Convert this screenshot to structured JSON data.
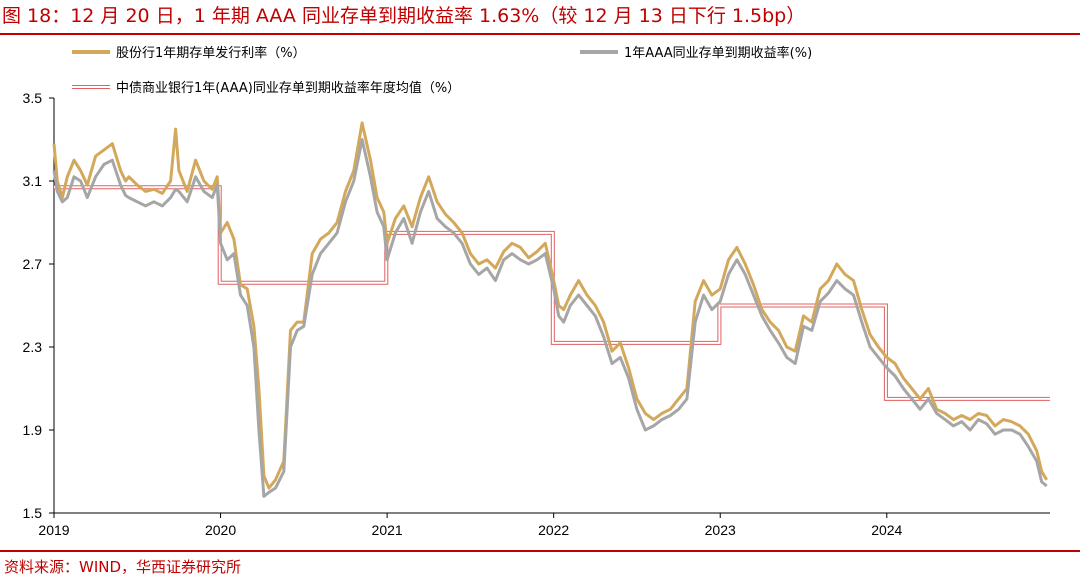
{
  "header": {
    "title": "图 18：12 月 20 日，1 年期 AAA 同业存单到期收益率 1.63%（较 12 月 13 日下行 1.5bp）"
  },
  "footer": {
    "source": "资料来源：WIND，华西证券研究所"
  },
  "chart_data": {
    "type": "line",
    "title": "",
    "xlabel": "",
    "ylabel": "",
    "xlim": [
      2019.0,
      2024.98
    ],
    "ylim": [
      1.5,
      3.5
    ],
    "grid": false,
    "legend_position": "top",
    "x_tick_labels": [
      "2019",
      "2020",
      "2021",
      "2022",
      "2023",
      "2024"
    ],
    "y_tick_labels": [
      "1.5",
      "1.9",
      "2.3",
      "2.7",
      "3.1",
      "3.5"
    ],
    "colors": {
      "series1": "#d4a85a",
      "series2": "#a6a6a6",
      "series3": "#e06060",
      "accent": "#c00000"
    },
    "series": [
      {
        "name": "股份行1年期存单发行利率（%）",
        "x": [
          2019.0,
          2019.02,
          2019.05,
          2019.08,
          2019.12,
          2019.16,
          2019.2,
          2019.25,
          2019.3,
          2019.35,
          2019.4,
          2019.43,
          2019.45,
          2019.5,
          2019.55,
          2019.6,
          2019.65,
          2019.7,
          2019.73,
          2019.75,
          2019.8,
          2019.85,
          2019.9,
          2019.95,
          2019.98,
          2020.0,
          2020.04,
          2020.08,
          2020.12,
          2020.16,
          2020.2,
          2020.23,
          2020.26,
          2020.29,
          2020.33,
          2020.38,
          2020.42,
          2020.46,
          2020.5,
          2020.55,
          2020.6,
          2020.65,
          2020.7,
          2020.75,
          2020.8,
          2020.85,
          2020.9,
          2020.94,
          2020.98,
          2021.0,
          2021.05,
          2021.1,
          2021.15,
          2021.2,
          2021.25,
          2021.3,
          2021.35,
          2021.4,
          2021.45,
          2021.5,
          2021.55,
          2021.6,
          2021.65,
          2021.7,
          2021.75,
          2021.8,
          2021.85,
          2021.9,
          2021.95,
          2022.0,
          2022.03,
          2022.06,
          2022.1,
          2022.15,
          2022.2,
          2022.25,
          2022.3,
          2022.35,
          2022.4,
          2022.45,
          2022.5,
          2022.55,
          2022.6,
          2022.65,
          2022.7,
          2022.75,
          2022.8,
          2022.85,
          2022.9,
          2022.95,
          2023.0,
          2023.05,
          2023.1,
          2023.15,
          2023.2,
          2023.25,
          2023.3,
          2023.35,
          2023.4,
          2023.45,
          2023.5,
          2023.55,
          2023.6,
          2023.65,
          2023.7,
          2023.75,
          2023.8,
          2023.85,
          2023.9,
          2023.95,
          2024.0,
          2024.05,
          2024.1,
          2024.15,
          2024.2,
          2024.25,
          2024.3,
          2024.35,
          2024.4,
          2024.45,
          2024.5,
          2024.55,
          2024.6,
          2024.65,
          2024.7,
          2024.75,
          2024.8,
          2024.85,
          2024.9,
          2024.93,
          2024.96
        ],
        "values": [
          3.28,
          3.1,
          3.02,
          3.12,
          3.2,
          3.15,
          3.08,
          3.22,
          3.25,
          3.28,
          3.15,
          3.1,
          3.12,
          3.08,
          3.05,
          3.06,
          3.04,
          3.1,
          3.35,
          3.15,
          3.05,
          3.2,
          3.1,
          3.06,
          3.12,
          2.85,
          2.9,
          2.82,
          2.6,
          2.58,
          2.4,
          2.1,
          1.68,
          1.62,
          1.66,
          1.75,
          2.38,
          2.42,
          2.42,
          2.75,
          2.82,
          2.85,
          2.9,
          3.05,
          3.15,
          3.38,
          3.2,
          3.02,
          2.95,
          2.8,
          2.92,
          2.98,
          2.88,
          3.02,
          3.12,
          3.0,
          2.94,
          2.9,
          2.85,
          2.75,
          2.7,
          2.72,
          2.68,
          2.76,
          2.8,
          2.78,
          2.73,
          2.76,
          2.8,
          2.62,
          2.5,
          2.48,
          2.55,
          2.62,
          2.55,
          2.5,
          2.42,
          2.28,
          2.32,
          2.2,
          2.05,
          1.98,
          1.95,
          1.98,
          2.0,
          2.05,
          2.1,
          2.52,
          2.62,
          2.55,
          2.58,
          2.72,
          2.78,
          2.7,
          2.6,
          2.48,
          2.42,
          2.38,
          2.3,
          2.28,
          2.45,
          2.42,
          2.58,
          2.62,
          2.7,
          2.65,
          2.62,
          2.48,
          2.36,
          2.3,
          2.25,
          2.22,
          2.15,
          2.1,
          2.05,
          2.1,
          2.0,
          1.98,
          1.95,
          1.97,
          1.95,
          1.98,
          1.97,
          1.92,
          1.95,
          1.94,
          1.92,
          1.88,
          1.8,
          1.7,
          1.66
        ]
      },
      {
        "name": "1年AAA同业存单到期收益率(%)",
        "x": [
          2019.0,
          2019.02,
          2019.05,
          2019.08,
          2019.12,
          2019.16,
          2019.2,
          2019.25,
          2019.3,
          2019.35,
          2019.4,
          2019.43,
          2019.45,
          2019.5,
          2019.55,
          2019.6,
          2019.65,
          2019.7,
          2019.73,
          2019.75,
          2019.8,
          2019.85,
          2019.9,
          2019.95,
          2019.98,
          2020.0,
          2020.04,
          2020.08,
          2020.12,
          2020.16,
          2020.2,
          2020.23,
          2020.26,
          2020.29,
          2020.33,
          2020.38,
          2020.42,
          2020.46,
          2020.5,
          2020.55,
          2020.6,
          2020.65,
          2020.7,
          2020.75,
          2020.8,
          2020.85,
          2020.9,
          2020.94,
          2020.98,
          2021.0,
          2021.05,
          2021.1,
          2021.15,
          2021.2,
          2021.25,
          2021.3,
          2021.35,
          2021.4,
          2021.45,
          2021.5,
          2021.55,
          2021.6,
          2021.65,
          2021.7,
          2021.75,
          2021.8,
          2021.85,
          2021.9,
          2021.95,
          2022.0,
          2022.03,
          2022.06,
          2022.1,
          2022.15,
          2022.2,
          2022.25,
          2022.3,
          2022.35,
          2022.4,
          2022.45,
          2022.5,
          2022.55,
          2022.6,
          2022.65,
          2022.7,
          2022.75,
          2022.8,
          2022.85,
          2022.9,
          2022.95,
          2023.0,
          2023.05,
          2023.1,
          2023.15,
          2023.2,
          2023.25,
          2023.3,
          2023.35,
          2023.4,
          2023.45,
          2023.5,
          2023.55,
          2023.6,
          2023.65,
          2023.7,
          2023.75,
          2023.8,
          2023.85,
          2023.9,
          2023.95,
          2024.0,
          2024.05,
          2024.1,
          2024.15,
          2024.2,
          2024.25,
          2024.3,
          2024.35,
          2024.4,
          2024.45,
          2024.5,
          2024.55,
          2024.6,
          2024.65,
          2024.7,
          2024.75,
          2024.8,
          2024.85,
          2024.9,
          2024.93,
          2024.96
        ],
        "values": [
          3.15,
          3.05,
          3.0,
          3.02,
          3.12,
          3.1,
          3.02,
          3.12,
          3.18,
          3.2,
          3.08,
          3.03,
          3.02,
          3.0,
          2.98,
          3.0,
          2.98,
          3.02,
          3.06,
          3.05,
          3.0,
          3.12,
          3.05,
          3.02,
          3.08,
          2.8,
          2.72,
          2.75,
          2.55,
          2.5,
          2.3,
          1.9,
          1.58,
          1.6,
          1.62,
          1.7,
          2.3,
          2.38,
          2.4,
          2.65,
          2.75,
          2.8,
          2.85,
          3.0,
          3.1,
          3.3,
          3.12,
          2.95,
          2.88,
          2.72,
          2.85,
          2.92,
          2.8,
          2.95,
          3.05,
          2.92,
          2.88,
          2.85,
          2.8,
          2.7,
          2.65,
          2.68,
          2.62,
          2.72,
          2.75,
          2.72,
          2.7,
          2.72,
          2.75,
          2.58,
          2.45,
          2.42,
          2.5,
          2.55,
          2.5,
          2.45,
          2.35,
          2.22,
          2.25,
          2.15,
          2.0,
          1.9,
          1.92,
          1.95,
          1.97,
          2.0,
          2.05,
          2.42,
          2.55,
          2.48,
          2.52,
          2.65,
          2.72,
          2.65,
          2.55,
          2.45,
          2.38,
          2.32,
          2.25,
          2.22,
          2.4,
          2.38,
          2.52,
          2.56,
          2.62,
          2.58,
          2.55,
          2.42,
          2.3,
          2.25,
          2.2,
          2.16,
          2.1,
          2.05,
          2.0,
          2.05,
          1.98,
          1.95,
          1.92,
          1.94,
          1.9,
          1.95,
          1.93,
          1.88,
          1.9,
          1.9,
          1.88,
          1.82,
          1.75,
          1.65,
          1.63
        ]
      },
      {
        "name": "中债商业银行1年(AAA)同业存单到期收益率年度均值（%）",
        "x": [
          2019.0,
          2019.995,
          2019.995,
          2020.995,
          2020.995,
          2021.995,
          2021.995,
          2022.995,
          2022.995,
          2023.995,
          2023.995,
          2024.98
        ],
        "values": [
          3.07,
          3.07,
          2.61,
          2.61,
          2.85,
          2.85,
          2.32,
          2.32,
          2.5,
          2.5,
          2.05,
          2.05
        ]
      }
    ]
  }
}
